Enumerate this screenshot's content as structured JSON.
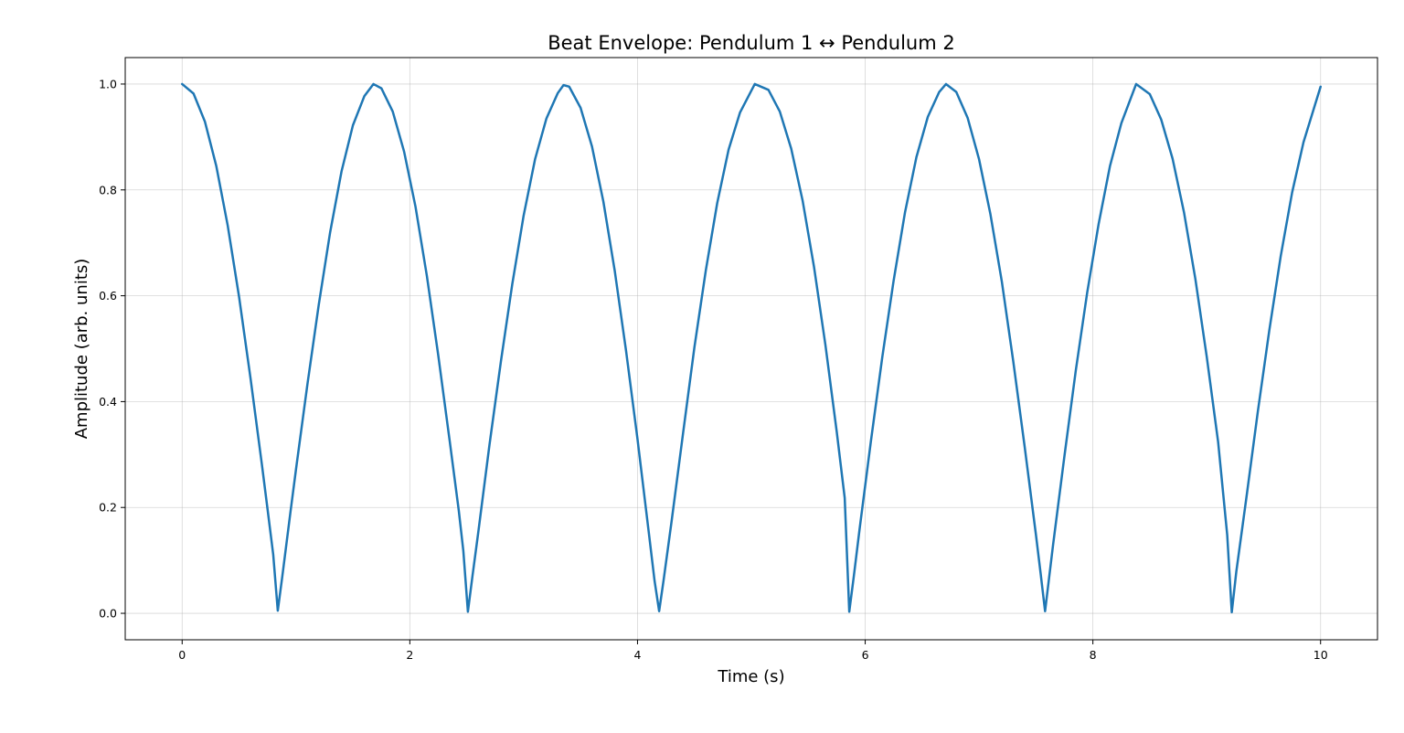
{
  "chart_data": {
    "type": "line",
    "title": "Beat Envelope: Pendulum 1 ↔ Pendulum 2",
    "xlabel": "Time (s)",
    "ylabel": "Amplitude (arb. units)",
    "xlim": [
      -0.5,
      10.5
    ],
    "ylim": [
      -0.05,
      1.05
    ],
    "xticks": [
      0,
      2,
      4,
      6,
      8,
      10
    ],
    "yticks": [
      0.0,
      0.2,
      0.4,
      0.6,
      0.8,
      1.0
    ],
    "xtick_labels": [
      "0",
      "2",
      "4",
      "6",
      "8",
      "10"
    ],
    "ytick_labels": [
      "0.0",
      "0.2",
      "0.4",
      "0.6",
      "0.8",
      "1.0"
    ],
    "grid": true,
    "legend": "none",
    "series": [
      {
        "color": "#1f77b4",
        "x": [
          0.0,
          0.1,
          0.2,
          0.3,
          0.4,
          0.5,
          0.6,
          0.7,
          0.75,
          0.8,
          0.84,
          0.88,
          0.95,
          1.0,
          1.1,
          1.2,
          1.3,
          1.4,
          1.5,
          1.6,
          1.68,
          1.75,
          1.85,
          1.95,
          2.05,
          2.15,
          2.25,
          2.35,
          2.43,
          2.47,
          2.51,
          2.55,
          2.6,
          2.7,
          2.8,
          2.9,
          3.0,
          3.1,
          3.2,
          3.3,
          3.35,
          3.4,
          3.5,
          3.6,
          3.7,
          3.8,
          3.9,
          4.0,
          4.1,
          4.15,
          4.19,
          4.23,
          4.3,
          4.4,
          4.5,
          4.6,
          4.7,
          4.8,
          4.9,
          5.03,
          5.15,
          5.25,
          5.35,
          5.45,
          5.55,
          5.65,
          5.75,
          5.82,
          5.86,
          5.9,
          5.95,
          6.05,
          6.15,
          6.25,
          6.35,
          6.45,
          6.55,
          6.65,
          6.71,
          6.8,
          6.9,
          7.0,
          7.1,
          7.2,
          7.3,
          7.4,
          7.5,
          7.54,
          7.58,
          7.65,
          7.75,
          7.85,
          7.95,
          8.05,
          8.15,
          8.25,
          8.38,
          8.5,
          8.6,
          8.7,
          8.8,
          8.9,
          9.0,
          9.1,
          9.18,
          9.22,
          9.26,
          9.35,
          9.45,
          9.55,
          9.65,
          9.75,
          9.85,
          9.95,
          10.0
        ],
        "y": [
          1.0,
          0.982,
          0.929,
          0.845,
          0.733,
          0.598,
          0.445,
          0.282,
          0.197,
          0.111,
          0.005,
          0.07,
          0.189,
          0.272,
          0.432,
          0.583,
          0.72,
          0.835,
          0.922,
          0.977,
          1.0,
          0.992,
          0.948,
          0.872,
          0.768,
          0.637,
          0.487,
          0.326,
          0.194,
          0.118,
          0.003,
          0.07,
          0.151,
          0.319,
          0.476,
          0.622,
          0.752,
          0.858,
          0.935,
          0.983,
          0.998,
          0.995,
          0.955,
          0.882,
          0.778,
          0.647,
          0.495,
          0.329,
          0.151,
          0.061,
          0.004,
          0.064,
          0.175,
          0.34,
          0.503,
          0.648,
          0.775,
          0.876,
          0.946,
          1.0,
          0.989,
          0.948,
          0.878,
          0.78,
          0.655,
          0.508,
          0.343,
          0.218,
          0.003,
          0.07,
          0.158,
          0.325,
          0.484,
          0.629,
          0.758,
          0.862,
          0.938,
          0.985,
          1.0,
          0.985,
          0.936,
          0.858,
          0.754,
          0.627,
          0.477,
          0.316,
          0.148,
          0.077,
          0.004,
          0.129,
          0.297,
          0.459,
          0.606,
          0.735,
          0.845,
          0.926,
          1.0,
          0.981,
          0.933,
          0.859,
          0.758,
          0.632,
          0.485,
          0.324,
          0.148,
          0.002,
          0.079,
          0.221,
          0.383,
          0.535,
          0.675,
          0.795,
          0.89,
          0.96,
          0.995
        ]
      }
    ]
  }
}
